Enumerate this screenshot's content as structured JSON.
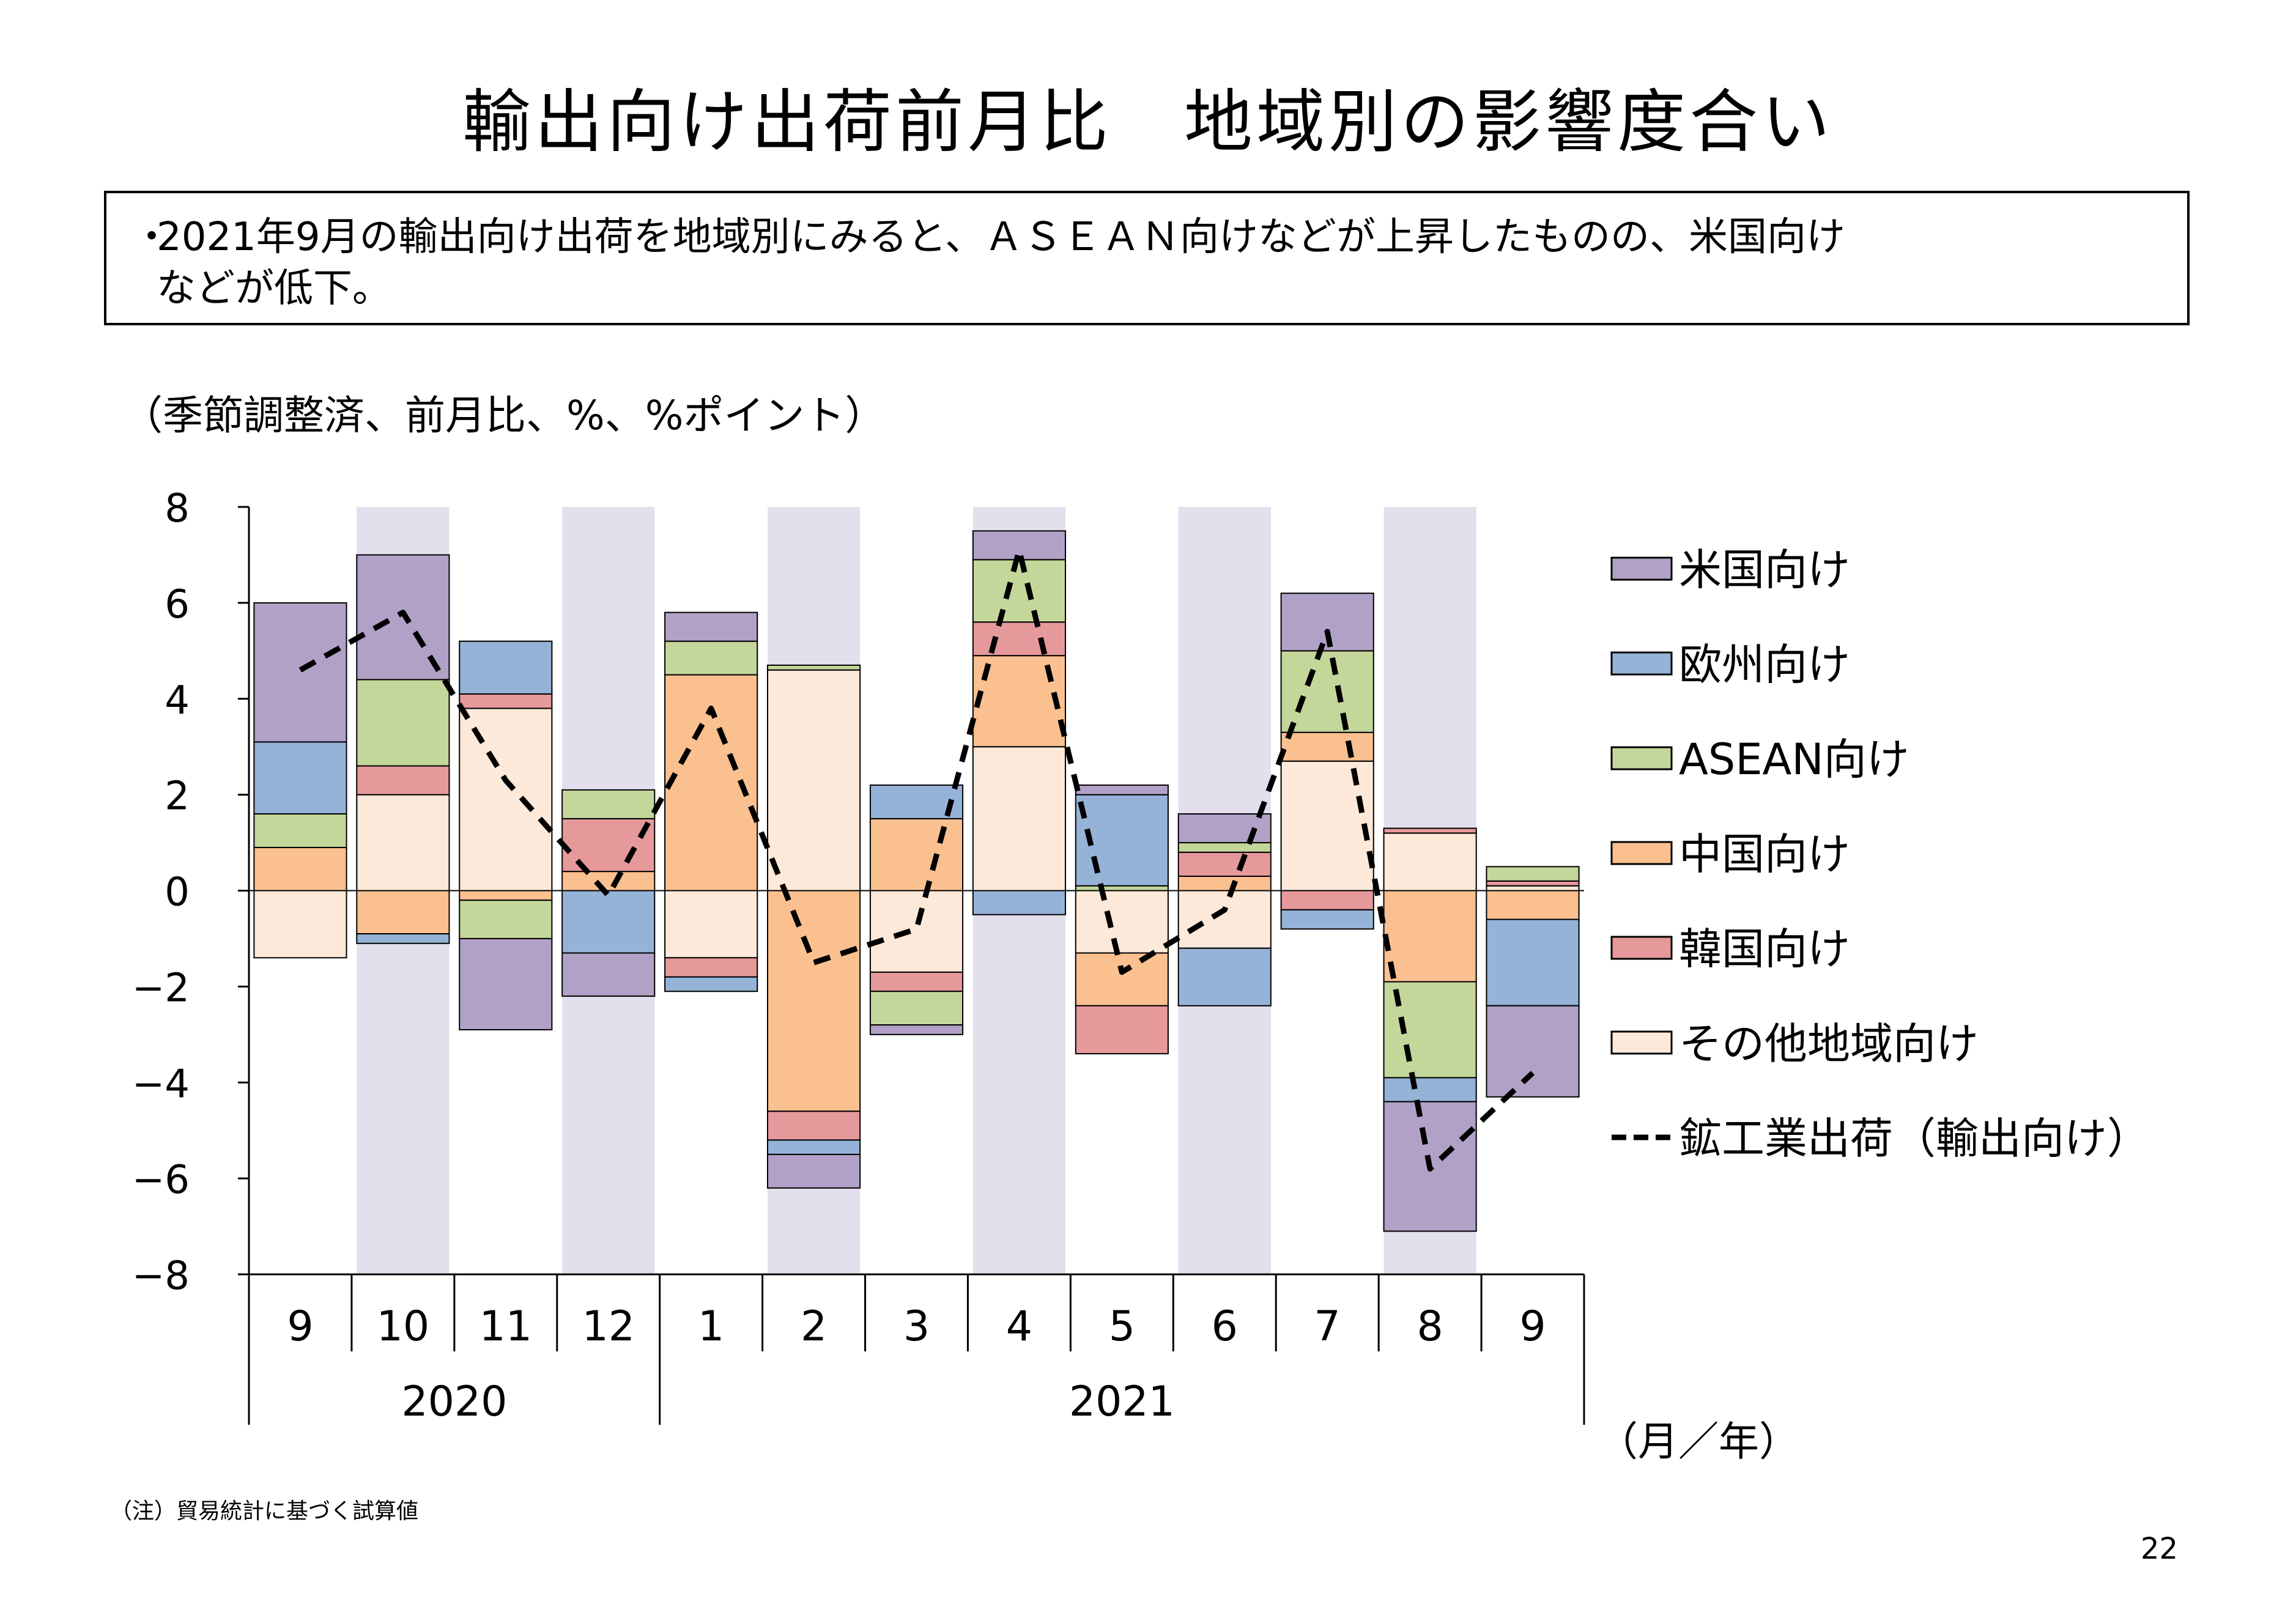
{
  "title": "輸出向け出荷前月比　地域別の影響度合い",
  "summary": {
    "bullet": "・",
    "line1": "2021年9月の輸出向け出荷を地域別にみると、ＡＳＥＡＮ向けなどが上昇したものの、米国向け",
    "line2": "などが低下。"
  },
  "unit_label": "（季節調整済、前月比、%、%ポイント）",
  "note": "（注）貿易統計に基づく試算値",
  "page_number": "22",
  "chart_data": {
    "type": "bar",
    "stacked": true,
    "categories": [
      "9",
      "10",
      "11",
      "12",
      "1",
      "2",
      "3",
      "4",
      "5",
      "6",
      "7",
      "8",
      "9"
    ],
    "year_groups": [
      {
        "label": "2020",
        "start": 0,
        "end": 3
      },
      {
        "label": "2021",
        "start": 4,
        "end": 12
      }
    ],
    "shaded_categories": [
      1,
      3,
      5,
      7,
      9,
      11
    ],
    "shade_color": "#e4dfec",
    "xlabel": "（月／年）",
    "ylim": [
      -8,
      8
    ],
    "yticks": [
      8,
      6,
      4,
      2,
      0,
      -2,
      -4,
      -6,
      -8
    ],
    "ytick_labels": [
      "8",
      "6",
      "4",
      "2",
      "0",
      "−2",
      "−4",
      "−6",
      "−8"
    ],
    "stack_order": [
      "その他地域向け",
      "中国向け",
      "韓国向け",
      "ASEAN向け",
      "欧州向け",
      "米国向け"
    ],
    "series": [
      {
        "name": "米国向け",
        "color": "#b2a1c7",
        "values": [
          2.9,
          2.6,
          -1.9,
          -0.9,
          0.6,
          -0.7,
          -0.2,
          0.6,
          0.2,
          0.6,
          1.2,
          -2.7,
          -1.9
        ]
      },
      {
        "name": "欧州向け",
        "color": "#95b3d7",
        "values": [
          1.5,
          -0.2,
          1.1,
          -1.3,
          -0.3,
          -0.3,
          0.7,
          -0.5,
          1.9,
          -1.2,
          -0.4,
          -0.5,
          -1.8
        ]
      },
      {
        "name": "ASEAN向け",
        "color": "#c4d79b",
        "values": [
          0.7,
          1.8,
          -0.8,
          0.6,
          0.7,
          0.1,
          -0.7,
          1.3,
          0.1,
          0.2,
          1.7,
          -2.0,
          0.3
        ]
      },
      {
        "name": "中国向け",
        "color": "#fac090",
        "values": [
          0.9,
          -0.9,
          -0.2,
          0.4,
          4.5,
          -4.6,
          1.5,
          1.9,
          -1.1,
          0.3,
          0.6,
          -1.9,
          -0.6
        ]
      },
      {
        "name": "韓国向け",
        "color": "#e6999b",
        "values": [
          0.0,
          0.6,
          0.3,
          1.1,
          -0.4,
          -0.6,
          -0.4,
          0.7,
          -1.0,
          0.5,
          -0.4,
          0.1,
          0.1
        ]
      },
      {
        "name": "その他地域向け",
        "color": "#fde9d9",
        "values": [
          -1.4,
          2.0,
          3.8,
          0.0,
          -1.4,
          4.6,
          -1.7,
          3.0,
          -1.3,
          -1.2,
          2.7,
          1.2,
          0.1
        ]
      }
    ],
    "line_series": {
      "name": "鉱工業出荷（輸出向け）",
      "color": "#000000",
      "dashed": true,
      "values": [
        4.6,
        5.8,
        2.3,
        -0.1,
        3.8,
        -1.5,
        -0.8,
        7.1,
        -1.7,
        -0.4,
        5.4,
        -5.8,
        -3.8
      ]
    },
    "legend_order": [
      "米国向け",
      "欧州向け",
      "ASEAN向け",
      "中国向け",
      "韓国向け",
      "その他地域向け",
      "鉱工業出荷（輸出向け）"
    ],
    "legend_position": "right"
  }
}
